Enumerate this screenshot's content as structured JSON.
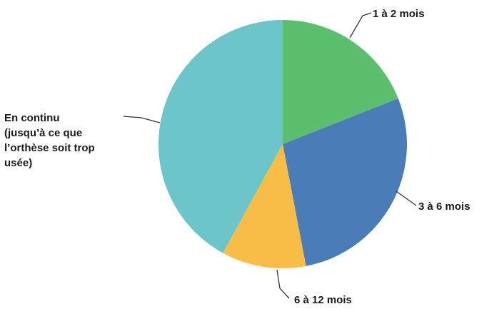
{
  "chart_data": {
    "type": "pie",
    "title": "",
    "slices": [
      {
        "label": "1 à 2 mois",
        "value": 19,
        "color": "#5bbf6e"
      },
      {
        "label": "3 à 6 mois",
        "value": 28,
        "color": "#4a7db8"
      },
      {
        "label": "6 à 12 mois",
        "value": 11,
        "color": "#f8bd47"
      },
      {
        "label": "En continu (jusqu'à ce que l'orthèse soit trop usée)",
        "label_lines": [
          "En continu",
          "(jusqu’à ce que",
          "l’orthèse soit trop",
          "usée)"
        ],
        "value": 42,
        "color": "#6cc5c9"
      }
    ],
    "start_angle": "12 o'clock",
    "direction": "clockwise",
    "legend": "none (leader-line labels)"
  }
}
